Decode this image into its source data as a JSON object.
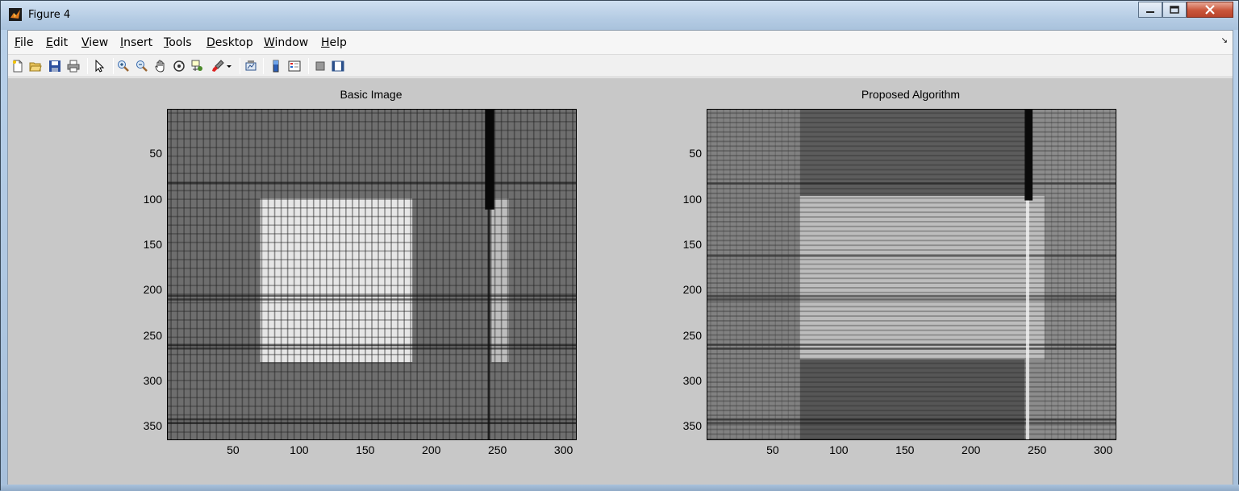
{
  "window": {
    "title": "Figure 4"
  },
  "menu": [
    {
      "label": "File",
      "key": "F",
      "rest": "ile"
    },
    {
      "label": "Edit",
      "key": "E",
      "rest": "dit"
    },
    {
      "label": "View",
      "key": "V",
      "rest": "iew"
    },
    {
      "label": "Insert",
      "key": "I",
      "rest": "nsert"
    },
    {
      "label": "Tools",
      "key": "T",
      "rest": "ools"
    },
    {
      "label": "Desktop",
      "key": "D",
      "rest": "esktop"
    },
    {
      "label": "Window",
      "key": "W",
      "rest": "indow"
    },
    {
      "label": "Help",
      "key": "H",
      "rest": "elp"
    }
  ],
  "toolbar": {
    "icons": [
      "new-figure-icon",
      "open-file-icon",
      "save-icon",
      "print-icon",
      "edit-plot-arrow-icon",
      "zoom-in-icon",
      "zoom-out-icon",
      "pan-hand-icon",
      "rotate-3d-icon",
      "data-cursor-icon",
      "brush-icon",
      "link-plot-icon",
      "insert-colorbar-icon",
      "insert-legend-icon",
      "hide-plot-tools-icon",
      "show-plot-tools-icon"
    ]
  },
  "plots": [
    {
      "title": "Basic Image",
      "yticks": [
        "50",
        "100",
        "150",
        "200",
        "250",
        "300",
        "350"
      ],
      "xticks": [
        "50",
        "100",
        "150",
        "200",
        "250",
        "300"
      ]
    },
    {
      "title": "Proposed Algorithm",
      "yticks": [
        "50",
        "100",
        "150",
        "200",
        "250",
        "300",
        "350"
      ],
      "xticks": [
        "50",
        "100",
        "150",
        "200",
        "250",
        "300"
      ]
    }
  ],
  "image_extent": {
    "xmax": 310,
    "ymax": 365
  },
  "colors": {
    "figure_bg": "#c8c8c8",
    "close_btn": "#c9553a"
  }
}
